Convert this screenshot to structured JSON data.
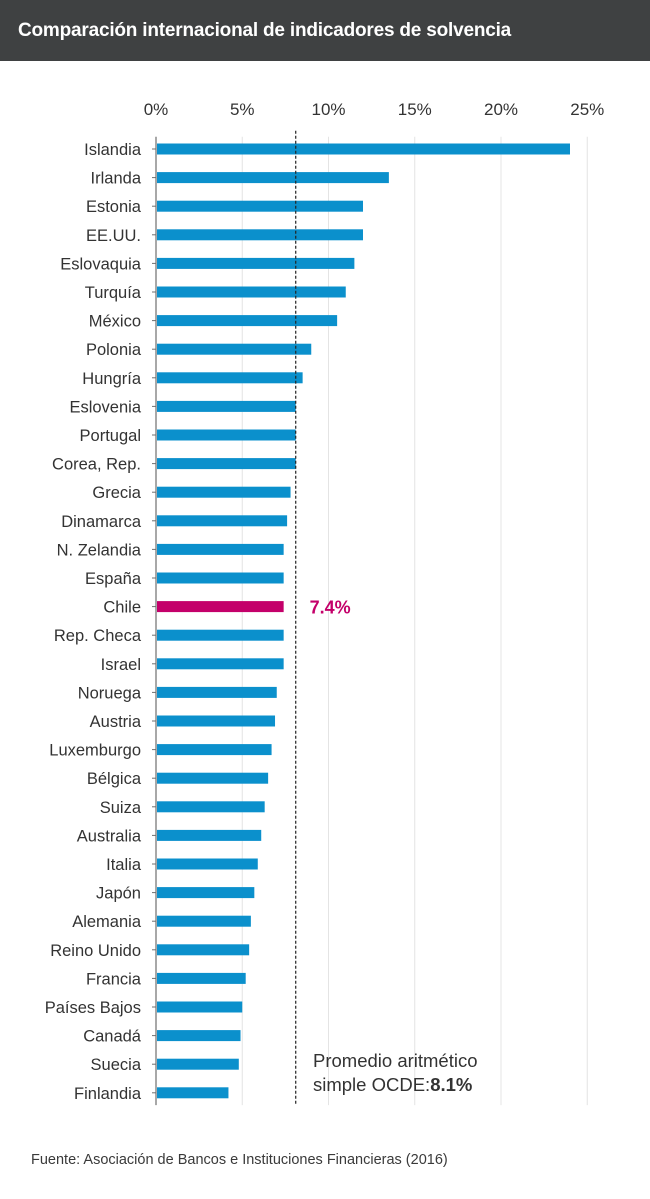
{
  "header": {
    "title": "Comparación internacional de indicadores de solvencia"
  },
  "footer": {
    "source": "Fuente: Asociación de Bancos e Instituciones Financieras (2016)"
  },
  "colors": {
    "bar": "#0b90cc",
    "highlight": "#c4006a",
    "text": "#333333",
    "header_bg": "#3f4142"
  },
  "chart_data": {
    "type": "bar",
    "orientation": "horizontal",
    "title": "Comparación internacional de indicadores de solvencia",
    "xlim": [
      0,
      25
    ],
    "xticks": [
      0,
      5,
      10,
      15,
      20,
      25
    ],
    "xtick_labels": [
      "0%",
      "5%",
      "10%",
      "15%",
      "20%",
      "25%"
    ],
    "categories": [
      "Islandia",
      "Irlanda",
      "Estonia",
      "EE.UU.",
      "Eslovaquia",
      "Turquía",
      "México",
      "Polonia",
      "Hungría",
      "Eslovenia",
      "Portugal",
      "Corea, Rep.",
      "Grecia",
      "Dinamarca",
      "N. Zelandia",
      "España",
      "Chile",
      "Rep. Checa",
      "Israel",
      "Noruega",
      "Austria",
      "Luxemburgo",
      "Bélgica",
      "Suiza",
      "Australia",
      "Italia",
      "Japón",
      "Alemania",
      "Reino Unido",
      "Francia",
      "Países Bajos",
      "Canadá",
      "Suecia",
      "Finlandia"
    ],
    "values": [
      24.0,
      13.5,
      12.0,
      12.0,
      11.5,
      11.0,
      10.5,
      9.0,
      8.5,
      8.1,
      8.1,
      8.1,
      7.8,
      7.6,
      7.4,
      7.4,
      7.4,
      7.4,
      7.4,
      7.0,
      6.9,
      6.7,
      6.5,
      6.3,
      6.1,
      5.9,
      5.7,
      5.5,
      5.4,
      5.2,
      5.0,
      4.9,
      4.8,
      4.2
    ],
    "highlight": {
      "category": "Chile",
      "label": "7.4%"
    },
    "reference_line": {
      "value": 8.1,
      "label_line1": "Promedio aritmético",
      "label_line2_prefix": "simple  OCDE:",
      "label_value": "8.1%"
    }
  }
}
